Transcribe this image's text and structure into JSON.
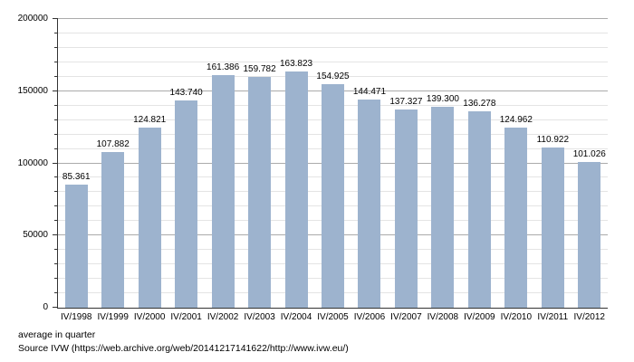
{
  "chart_data": {
    "type": "bar",
    "title": "",
    "xlabel": "",
    "ylabel": "",
    "categories": [
      "IV/1998",
      "IV/1999",
      "IV/2000",
      "IV/2001",
      "IV/2002",
      "IV/2003",
      "IV/2004",
      "IV/2005",
      "IV/2006",
      "IV/2007",
      "IV/2008",
      "IV/2009",
      "IV/2010",
      "IV/2011",
      "IV/2012"
    ],
    "values": [
      85361,
      107882,
      124821,
      143740,
      161386,
      159782,
      163823,
      154925,
      144471,
      137327,
      139300,
      136278,
      124962,
      110922,
      101026
    ],
    "value_labels": [
      "85.361",
      "107.882",
      "124.821",
      "143.740",
      "161.386",
      "159.782",
      "163.823",
      "154.925",
      "144.471",
      "137.327",
      "139.300",
      "136.278",
      "124.962",
      "110.922",
      "101.026"
    ],
    "ylim": [
      0,
      200000
    ],
    "y_major_step": 50000,
    "y_minor_step": 10000,
    "y_tick_labels": [
      "0",
      "50000",
      "100000",
      "150000",
      "200000"
    ],
    "grid": "horizontal",
    "legend": "none",
    "annotations": [
      "average in quarter",
      "Source IVW (https://web.archive.org/web/20141217141622/http://www.ivw.eu/)"
    ]
  },
  "colors": {
    "bar": "#9db3ce",
    "grid_minor": "#e4e4e4",
    "grid_major": "#ababab",
    "axis": "#333333",
    "text": "#000000",
    "background": "#ffffff"
  }
}
